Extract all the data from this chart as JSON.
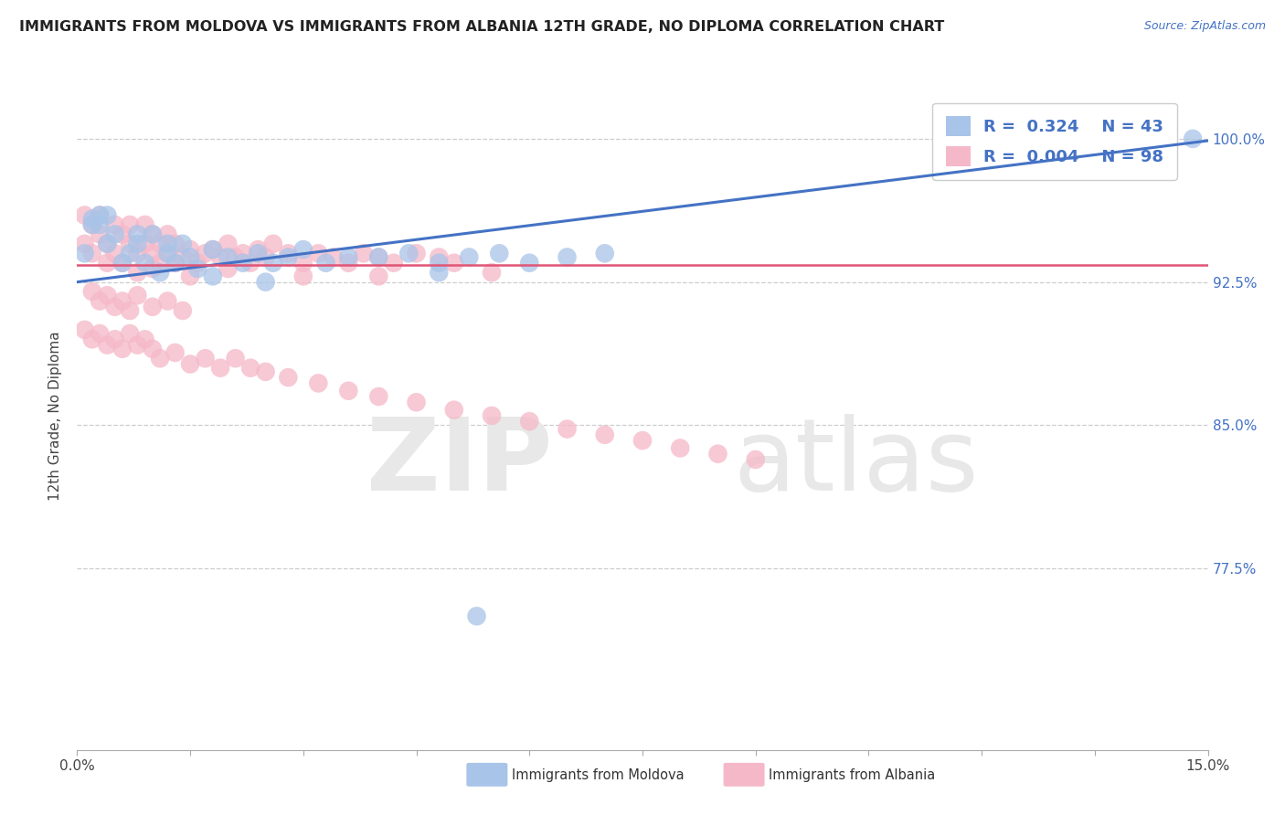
{
  "title": "IMMIGRANTS FROM MOLDOVA VS IMMIGRANTS FROM ALBANIA 12TH GRADE, NO DIPLOMA CORRELATION CHART",
  "source": "Source: ZipAtlas.com",
  "ylabel": "12th Grade, No Diploma",
  "xmin": 0.0,
  "xmax": 0.15,
  "ymin": 0.68,
  "ymax": 1.03,
  "yticks": [
    0.775,
    0.85,
    0.925,
    1.0
  ],
  "ytick_labels": [
    "77.5%",
    "85.0%",
    "92.5%",
    "100.0%"
  ],
  "moldova_R": 0.324,
  "moldova_N": 43,
  "albania_R": 0.004,
  "albania_N": 98,
  "moldova_color": "#a8c4e8",
  "albania_color": "#f5b8c8",
  "moldova_line_color": "#4472c4",
  "albania_line_color": "#e05575",
  "background_color": "#ffffff",
  "grid_color": "#c8c8c8",
  "watermark_color": "#e8e8e8",
  "title_color": "#222222",
  "source_color": "#4472c4",
  "right_axis_color": "#4472c4",
  "moldova_x": [
    0.001,
    0.002,
    0.003,
    0.004,
    0.005,
    0.006,
    0.007,
    0.008,
    0.009,
    0.01,
    0.011,
    0.012,
    0.013,
    0.014,
    0.015,
    0.016,
    0.018,
    0.02,
    0.022,
    0.024,
    0.026,
    0.028,
    0.03,
    0.033,
    0.036,
    0.04,
    0.044,
    0.048,
    0.052,
    0.056,
    0.06,
    0.065,
    0.07,
    0.048,
    0.025,
    0.018,
    0.012,
    0.008,
    0.004,
    0.003,
    0.002,
    0.148,
    0.053
  ],
  "moldova_y": [
    0.94,
    0.955,
    0.96,
    0.945,
    0.95,
    0.935,
    0.94,
    0.945,
    0.935,
    0.95,
    0.93,
    0.94,
    0.935,
    0.945,
    0.938,
    0.932,
    0.942,
    0.938,
    0.935,
    0.94,
    0.935,
    0.938,
    0.942,
    0.935,
    0.938,
    0.938,
    0.94,
    0.935,
    0.938,
    0.94,
    0.935,
    0.938,
    0.94,
    0.93,
    0.925,
    0.928,
    0.945,
    0.95,
    0.96,
    0.955,
    0.958,
    1.0,
    0.75
  ],
  "albania_x": [
    0.001,
    0.001,
    0.002,
    0.002,
    0.003,
    0.003,
    0.004,
    0.004,
    0.005,
    0.005,
    0.006,
    0.006,
    0.007,
    0.007,
    0.008,
    0.008,
    0.009,
    0.009,
    0.01,
    0.01,
    0.011,
    0.011,
    0.012,
    0.012,
    0.013,
    0.013,
    0.014,
    0.015,
    0.016,
    0.017,
    0.018,
    0.019,
    0.02,
    0.021,
    0.022,
    0.023,
    0.024,
    0.025,
    0.026,
    0.028,
    0.03,
    0.032,
    0.034,
    0.036,
    0.038,
    0.04,
    0.042,
    0.045,
    0.048,
    0.05,
    0.002,
    0.003,
    0.004,
    0.005,
    0.006,
    0.007,
    0.008,
    0.01,
    0.012,
    0.014,
    0.001,
    0.002,
    0.003,
    0.004,
    0.005,
    0.006,
    0.007,
    0.008,
    0.009,
    0.01,
    0.011,
    0.013,
    0.015,
    0.017,
    0.019,
    0.021,
    0.023,
    0.025,
    0.028,
    0.032,
    0.036,
    0.04,
    0.045,
    0.05,
    0.055,
    0.06,
    0.065,
    0.07,
    0.075,
    0.08,
    0.085,
    0.09,
    0.04,
    0.02,
    0.015,
    0.01,
    0.03,
    0.055
  ],
  "albania_y": [
    0.96,
    0.945,
    0.955,
    0.94,
    0.96,
    0.95,
    0.945,
    0.935,
    0.955,
    0.94,
    0.95,
    0.935,
    0.945,
    0.955,
    0.94,
    0.93,
    0.945,
    0.955,
    0.94,
    0.95,
    0.935,
    0.945,
    0.94,
    0.95,
    0.935,
    0.945,
    0.938,
    0.942,
    0.935,
    0.94,
    0.942,
    0.938,
    0.945,
    0.938,
    0.94,
    0.935,
    0.942,
    0.938,
    0.945,
    0.94,
    0.935,
    0.94,
    0.938,
    0.935,
    0.94,
    0.938,
    0.935,
    0.94,
    0.938,
    0.935,
    0.92,
    0.915,
    0.918,
    0.912,
    0.915,
    0.91,
    0.918,
    0.912,
    0.915,
    0.91,
    0.9,
    0.895,
    0.898,
    0.892,
    0.895,
    0.89,
    0.898,
    0.892,
    0.895,
    0.89,
    0.885,
    0.888,
    0.882,
    0.885,
    0.88,
    0.885,
    0.88,
    0.878,
    0.875,
    0.872,
    0.868,
    0.865,
    0.862,
    0.858,
    0.855,
    0.852,
    0.848,
    0.845,
    0.842,
    0.838,
    0.835,
    0.832,
    0.928,
    0.932,
    0.928,
    0.932,
    0.928,
    0.93
  ],
  "moldova_trend": [
    0.925,
    0.999
  ],
  "albania_trend": [
    0.934,
    0.934
  ]
}
